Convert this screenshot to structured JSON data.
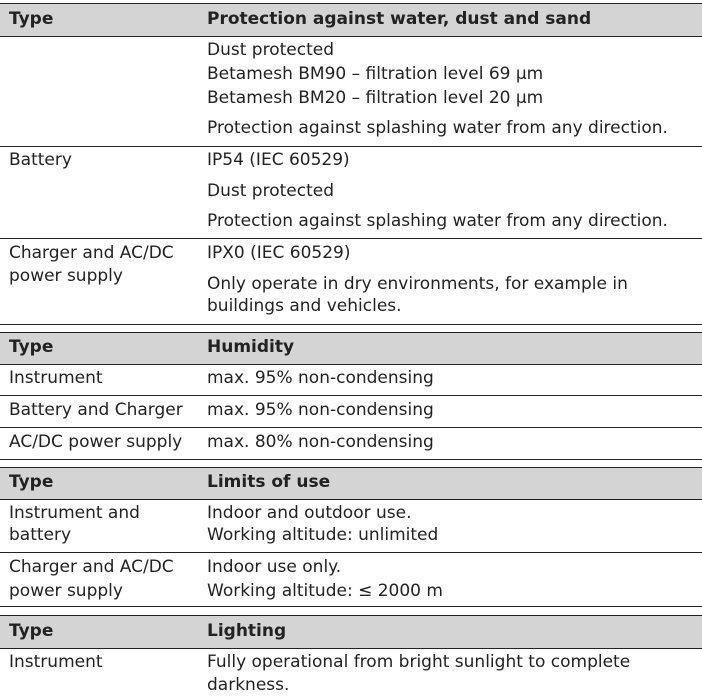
{
  "tables": [
    {
      "header": [
        "Type",
        "Protection against water, dust and sand"
      ],
      "rows": [
        {
          "type": [],
          "value": [
            "Dust protected",
            "Betamesh BM90 – filtration level 69 µm",
            "Betamesh BM20 – filtration level 20 µm",
            "Protection against splashing water from any direction."
          ]
        },
        {
          "type": [
            "Battery"
          ],
          "value": [
            "IP54 (IEC 60529)",
            "Dust protected",
            "Protection against splashing water from any direction."
          ]
        },
        {
          "type": [
            "Charger and AC/DC",
            "power supply"
          ],
          "value": [
            "IPX0 (IEC 60529)",
            "Only operate in dry environments, for example in",
            "buildings and vehicles."
          ]
        }
      ]
    },
    {
      "header": [
        "Type",
        "Humidity"
      ],
      "rows": [
        {
          "type": [
            "Instrument"
          ],
          "value": [
            "max. 95% non-condensing"
          ]
        },
        {
          "type": [
            "Battery and Charger"
          ],
          "value": [
            "max. 95% non-condensing"
          ]
        },
        {
          "type": [
            "AC/DC power supply"
          ],
          "value": [
            "max. 80% non-condensing"
          ]
        }
      ]
    },
    {
      "header": [
        "Type",
        "Limits of use"
      ],
      "rows": [
        {
          "type": [
            "Instrument and",
            "battery"
          ],
          "value": [
            "Indoor and outdoor use.",
            "Working altitude: unlimited"
          ]
        },
        {
          "type": [
            "Charger and AC/DC",
            "power supply"
          ],
          "value": [
            "Indoor use only.",
            "Working altitude: ≤ 2000 m"
          ]
        }
      ]
    },
    {
      "header": [
        "Type",
        "Lighting"
      ],
      "rows": [
        {
          "type": [
            "Instrument"
          ],
          "value": [
            "Fully operational from bright sunlight to complete",
            "darkness."
          ]
        }
      ]
    }
  ]
}
